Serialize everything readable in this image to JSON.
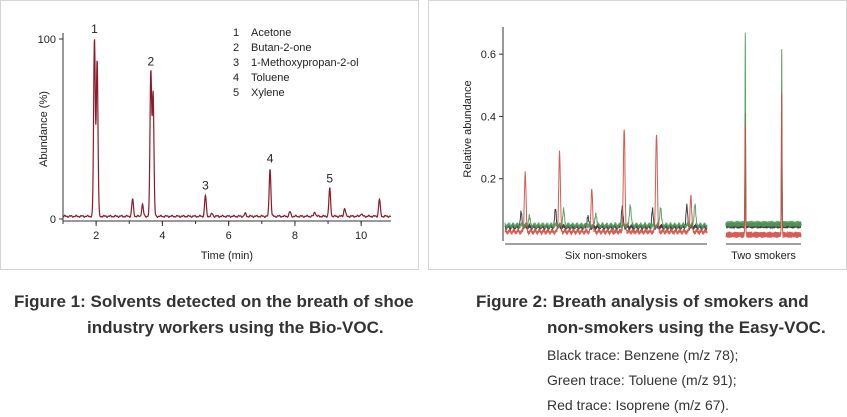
{
  "figures": [
    {
      "caption_label": "Figure 1:",
      "caption_line1": "Solvents detected on the breath of shoe",
      "caption_line2": "industry workers using the Bio-VOC."
    },
    {
      "caption_label": "Figure 2:",
      "caption_line1": "Breath analysis of smokers and",
      "caption_line2": "non-smokers using the Easy-VOC.",
      "notes": [
        "Black trace: Benzene (m/z 78);",
        "Green trace: Toluene (m/z 91);",
        "Red trace: Isoprene (m/z 67)."
      ]
    }
  ],
  "chart_data": [
    {
      "type": "line",
      "title": "",
      "xlabel": "Time (min)",
      "ylabel": "Abundance (%)",
      "xlim": [
        1.0,
        10.9
      ],
      "ylim": [
        0,
        100
      ],
      "x_ticks": [
        2,
        4,
        6,
        8,
        10
      ],
      "y_ticks": [
        0,
        100
      ],
      "line_color": "#8b1a2a",
      "baseline": 1.5,
      "peaks": [
        {
          "x": 1.95,
          "y": 100,
          "label": "1"
        },
        {
          "x": 2.03,
          "y": 88,
          "label": ""
        },
        {
          "x": 3.1,
          "y": 11,
          "label": ""
        },
        {
          "x": 3.4,
          "y": 8,
          "label": ""
        },
        {
          "x": 3.65,
          "y": 82,
          "label": "2"
        },
        {
          "x": 3.72,
          "y": 70,
          "label": ""
        },
        {
          "x": 5.3,
          "y": 13,
          "label": "3"
        },
        {
          "x": 5.5,
          "y": 3,
          "label": ""
        },
        {
          "x": 6.5,
          "y": 3,
          "label": ""
        },
        {
          "x": 7.25,
          "y": 28,
          "label": "4"
        },
        {
          "x": 7.85,
          "y": 4,
          "label": ""
        },
        {
          "x": 8.6,
          "y": 4,
          "label": ""
        },
        {
          "x": 9.05,
          "y": 17,
          "label": "5"
        },
        {
          "x": 9.5,
          "y": 6,
          "label": ""
        },
        {
          "x": 10.0,
          "y": 3,
          "label": ""
        },
        {
          "x": 10.55,
          "y": 11,
          "label": ""
        }
      ],
      "legend": {
        "placement": "top-right",
        "entries": [
          {
            "num": "1",
            "label": "Acetone"
          },
          {
            "num": "2",
            "label": "Butan-2-one"
          },
          {
            "num": "3",
            "label": "1-Methoxypropan-2-ol"
          },
          {
            "num": "4",
            "label": "Toluene"
          },
          {
            "num": "5",
            "label": "Xylene"
          }
        ]
      }
    },
    {
      "type": "line",
      "title": "",
      "xlabel": "",
      "ylabel": "Relative abundance",
      "ylim": [
        0,
        0.7
      ],
      "y_ticks": [
        0.2,
        0.4,
        0.6
      ],
      "groups": [
        {
          "label": "Six non-smokers",
          "xlim": [
            0,
            100
          ]
        },
        {
          "label": "Two smokers",
          "xlim": [
            0,
            35
          ]
        }
      ],
      "series": [
        {
          "name": "Benzene (m/z 78)",
          "color": "#2b2b2b",
          "group": 0,
          "baseline": 0.045,
          "peaks": [
            {
              "x": 8,
              "y": 0.09
            },
            {
              "x": 25,
              "y": 0.1
            },
            {
              "x": 41,
              "y": 0.08
            },
            {
              "x": 58,
              "y": 0.11
            },
            {
              "x": 73,
              "y": 0.1
            },
            {
              "x": 90,
              "y": 0.11
            }
          ]
        },
        {
          "name": "Toluene (m/z 91)",
          "color": "#4f9a5a",
          "group": 0,
          "baseline": 0.05,
          "peaks": [
            {
              "x": 12,
              "y": 0.08
            },
            {
              "x": 29,
              "y": 0.1
            },
            {
              "x": 45,
              "y": 0.09
            },
            {
              "x": 62,
              "y": 0.12
            },
            {
              "x": 77,
              "y": 0.11
            },
            {
              "x": 94,
              "y": 0.12
            }
          ]
        },
        {
          "name": "Isoprene (m/z 67)",
          "color": "#d24a42",
          "group": 0,
          "baseline": 0.03,
          "peaks": [
            {
              "x": 10,
              "y": 0.22
            },
            {
              "x": 27,
              "y": 0.29
            },
            {
              "x": 43,
              "y": 0.17
            },
            {
              "x": 59,
              "y": 0.36
            },
            {
              "x": 75,
              "y": 0.35
            },
            {
              "x": 92,
              "y": 0.15
            }
          ]
        },
        {
          "name": "Benzene (m/z 78)",
          "color": "#2b2b2b",
          "group": 1,
          "baseline": 0.05,
          "peaks": [
            {
              "x": 9,
              "y": 0.41
            },
            {
              "x": 26,
              "y": 0.37
            }
          ]
        },
        {
          "name": "Toluene (m/z 91)",
          "color": "#4f9a5a",
          "group": 1,
          "baseline": 0.055,
          "peaks": [
            {
              "x": 9,
              "y": 0.67
            },
            {
              "x": 26,
              "y": 0.61
            }
          ]
        },
        {
          "name": "Isoprene (m/z 67)",
          "color": "#d24a42",
          "group": 1,
          "baseline": 0.02,
          "peaks": [
            {
              "x": 9,
              "y": 0.37
            },
            {
              "x": 26,
              "y": 0.47
            }
          ]
        }
      ]
    }
  ]
}
